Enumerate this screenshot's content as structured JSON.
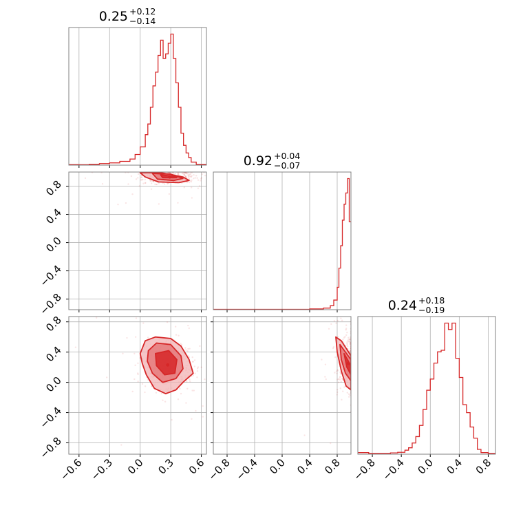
{
  "figure": {
    "type": "corner"
  },
  "colors": {
    "main": "#d62728",
    "fill_light": "#f2b3b4",
    "fill_dark": "#e36f70",
    "grid": "#b0b0b0"
  },
  "chart_data": [
    {
      "type": "histogram",
      "panel": "diag-1",
      "param_index": 1,
      "title": {
        "value": "0.25",
        "plus": "+0.12",
        "minus": "−0.14"
      },
      "xlim": [
        -0.7,
        0.65
      ],
      "bin_edges": [
        -0.7,
        -0.6,
        -0.5,
        -0.4,
        -0.3,
        -0.2,
        -0.1,
        -0.05,
        0.0,
        0.05,
        0.075,
        0.1,
        0.125,
        0.15,
        0.175,
        0.2,
        0.225,
        0.25,
        0.275,
        0.3,
        0.325,
        0.35,
        0.375,
        0.4,
        0.425,
        0.45,
        0.475,
        0.5,
        0.55,
        0.65
      ],
      "counts": [
        0.4,
        0.3,
        0.6,
        1.0,
        1.5,
        2.5,
        4.0,
        7.0,
        12.0,
        20.0,
        27.0,
        38.0,
        52.0,
        61.0,
        72.0,
        82.0,
        70.0,
        73.0,
        80.0,
        86.0,
        70.0,
        54.0,
        38.0,
        21.0,
        13.0,
        8.0,
        5.0,
        2.0,
        0.5
      ],
      "xticks": [
        "−0.6",
        "−0.3",
        "0.0",
        "0.3",
        "0.6"
      ],
      "xtick_values": [
        -0.6,
        -0.3,
        0.0,
        0.3,
        0.6
      ]
    },
    {
      "type": "histogram",
      "panel": "diag-2",
      "param_index": 2,
      "title": {
        "value": "0.92",
        "plus": "+0.04",
        "minus": "−0.07"
      },
      "xlim": [
        -1.0,
        1.0
      ],
      "bin_edges": [
        -1.0,
        0.4,
        0.6,
        0.7,
        0.75,
        0.8,
        0.825,
        0.85,
        0.875,
        0.9,
        0.925,
        0.95,
        0.975,
        1.0
      ],
      "counts": [
        0.2,
        0.5,
        1.0,
        2.5,
        6.0,
        14.0,
        26.0,
        40.0,
        56.0,
        66.0,
        73.0,
        82.0,
        55.0
      ],
      "xticks": [
        "−0.8",
        "−0.4",
        "0.0",
        "0.4",
        "0.8"
      ],
      "xtick_values": [
        -0.8,
        -0.4,
        0.0,
        0.4,
        0.8
      ]
    },
    {
      "type": "histogram",
      "panel": "diag-3",
      "param_index": 3,
      "title": {
        "value": "0.24",
        "plus": "+0.18",
        "minus": "−0.19"
      },
      "xlim": [
        -1.0,
        0.9
      ],
      "bin_edges": [
        -1.0,
        -0.85,
        -0.7,
        -0.55,
        -0.45,
        -0.35,
        -0.3,
        -0.25,
        -0.2,
        -0.15,
        -0.1,
        -0.05,
        0.0,
        0.05,
        0.1,
        0.15,
        0.2,
        0.25,
        0.3,
        0.35,
        0.4,
        0.45,
        0.5,
        0.55,
        0.6,
        0.65,
        0.7,
        0.8,
        0.9
      ],
      "counts": [
        1.0,
        0.5,
        0.5,
        0.8,
        1.2,
        2.5,
        4.0,
        7.0,
        11.0,
        18.0,
        28.0,
        40.0,
        47.0,
        57.0,
        64.0,
        65.0,
        82.0,
        78.0,
        82.0,
        60.0,
        48.0,
        31.0,
        26.0,
        17.0,
        10.0,
        3.0,
        1.0,
        0.5
      ],
      "xticks": [
        "−0.8",
        "−0.4",
        "0.0",
        "0.4",
        "0.8"
      ],
      "xtick_values": [
        -0.8,
        -0.4,
        0.0,
        0.4,
        0.8
      ]
    },
    {
      "type": "scatter",
      "panel": "pair-2-1",
      "x_param": 1,
      "y_param": 2,
      "xlim": [
        -0.7,
        0.65
      ],
      "ylim": [
        -0.95,
        1.0
      ],
      "yticks": [
        "−0.8",
        "−0.4",
        "0.0",
        "0.4",
        "0.8"
      ],
      "ytick_values": [
        -0.8,
        -0.4,
        0.0,
        0.4,
        0.8
      ],
      "peak": [
        0.29,
        0.93
      ],
      "contours": [
        [
          [
            0.0,
            0.99
          ],
          [
            0.2,
            0.99
          ],
          [
            0.42,
            0.93
          ],
          [
            0.48,
            0.88
          ],
          [
            0.38,
            0.85
          ],
          [
            0.18,
            0.86
          ],
          [
            0.05,
            0.93
          ]
        ],
        [
          [
            0.12,
            0.98
          ],
          [
            0.3,
            0.97
          ],
          [
            0.42,
            0.91
          ],
          [
            0.33,
            0.88
          ],
          [
            0.17,
            0.9
          ]
        ],
        [
          [
            0.2,
            0.96
          ],
          [
            0.34,
            0.94
          ],
          [
            0.36,
            0.92
          ],
          [
            0.22,
            0.92
          ]
        ]
      ]
    },
    {
      "type": "scatter",
      "panel": "pair-3-1",
      "x_param": 1,
      "y_param": 3,
      "xlim": [
        -0.7,
        0.65
      ],
      "ylim": [
        -0.95,
        0.87
      ],
      "yticks": [
        "−0.8",
        "−0.4",
        "0.0",
        "0.4",
        "0.8"
      ],
      "ytick_values": [
        -0.8,
        -0.4,
        0.0,
        0.4,
        0.8
      ],
      "peak": [
        0.27,
        0.23
      ],
      "contours": [
        [
          [
            0.0,
            0.38
          ],
          [
            0.05,
            0.55
          ],
          [
            0.15,
            0.6
          ],
          [
            0.3,
            0.58
          ],
          [
            0.4,
            0.48
          ],
          [
            0.48,
            0.3
          ],
          [
            0.52,
            0.12
          ],
          [
            0.42,
            0.0
          ],
          [
            0.35,
            -0.1
          ],
          [
            0.25,
            -0.15
          ],
          [
            0.14,
            -0.08
          ],
          [
            0.06,
            0.1
          ],
          [
            0.02,
            0.25
          ]
        ],
        [
          [
            0.08,
            0.42
          ],
          [
            0.16,
            0.52
          ],
          [
            0.3,
            0.5
          ],
          [
            0.4,
            0.35
          ],
          [
            0.42,
            0.18
          ],
          [
            0.35,
            0.05
          ],
          [
            0.22,
            0.0
          ],
          [
            0.12,
            0.12
          ],
          [
            0.07,
            0.28
          ]
        ],
        [
          [
            0.15,
            0.38
          ],
          [
            0.28,
            0.42
          ],
          [
            0.36,
            0.3
          ],
          [
            0.34,
            0.12
          ],
          [
            0.24,
            0.1
          ],
          [
            0.16,
            0.22
          ]
        ]
      ]
    },
    {
      "type": "scatter",
      "panel": "pair-3-2",
      "x_param": 2,
      "y_param": 3,
      "xlim": [
        -1.0,
        1.0
      ],
      "ylim": [
        -0.95,
        0.87
      ],
      "peak": [
        0.96,
        0.25
      ],
      "contours": [
        [
          [
            0.78,
            0.6
          ],
          [
            0.86,
            0.55
          ],
          [
            1.0,
            0.35
          ],
          [
            1.0,
            -0.1
          ],
          [
            0.93,
            -0.05
          ],
          [
            0.86,
            0.15
          ],
          [
            0.8,
            0.4
          ]
        ],
        [
          [
            0.84,
            0.5
          ],
          [
            1.0,
            0.3
          ],
          [
            1.0,
            0.02
          ],
          [
            0.92,
            0.12
          ],
          [
            0.86,
            0.3
          ]
        ],
        [
          [
            0.9,
            0.38
          ],
          [
            1.0,
            0.22
          ],
          [
            1.0,
            0.1
          ],
          [
            0.94,
            0.2
          ]
        ]
      ]
    }
  ]
}
